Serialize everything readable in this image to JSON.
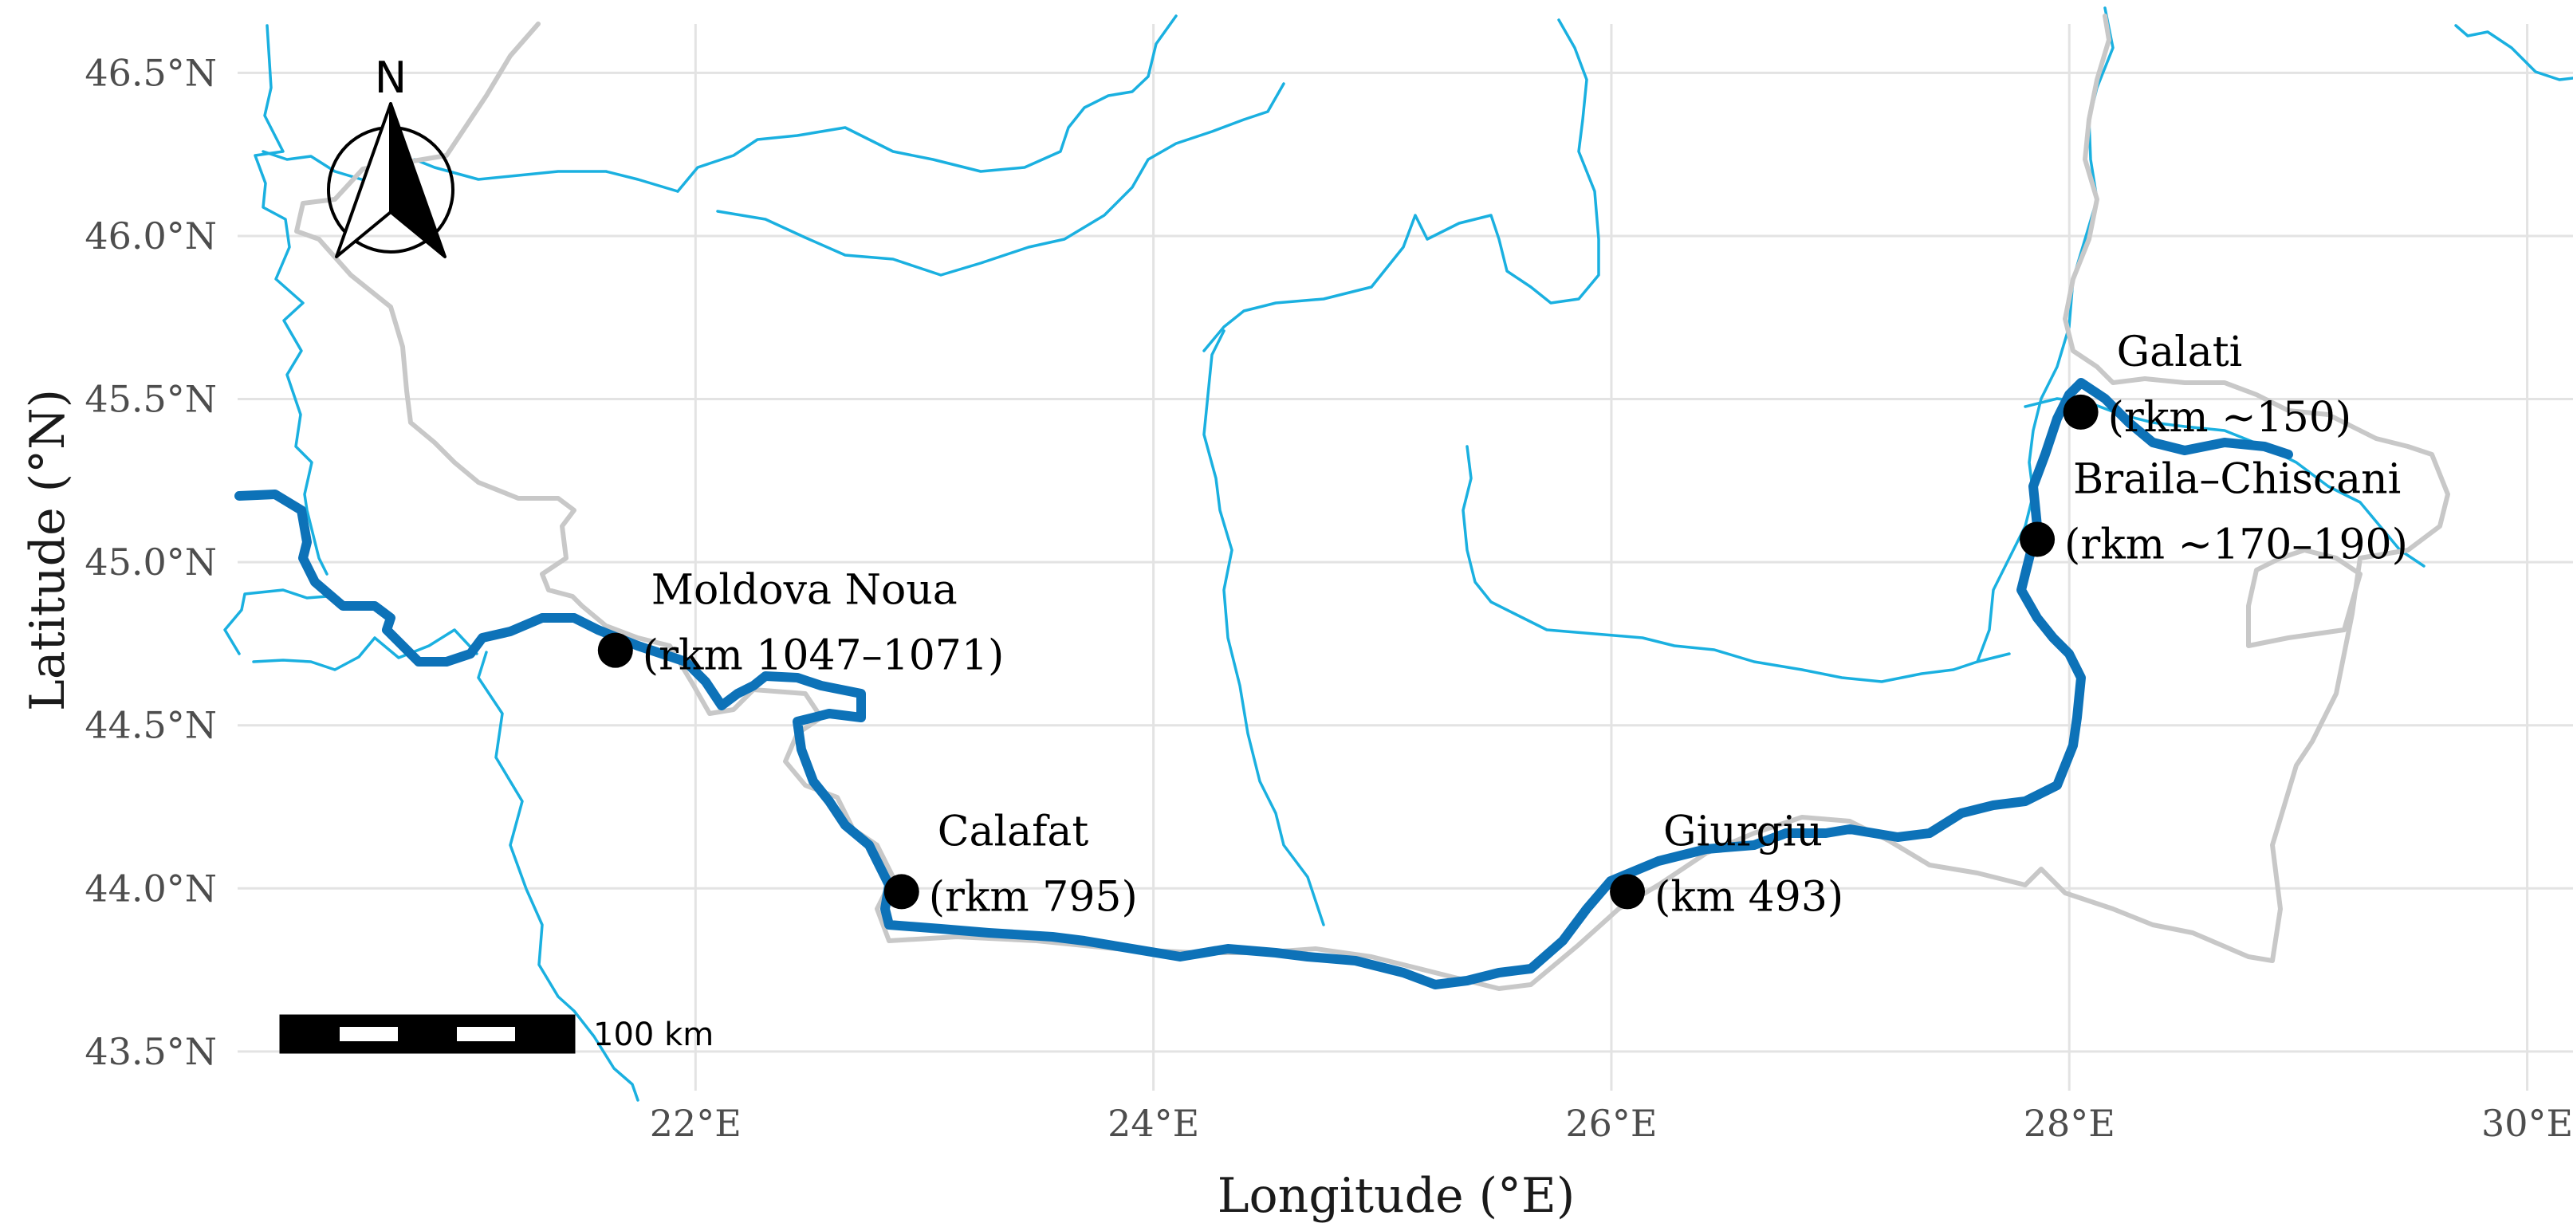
{
  "map": {
    "x_axis": {
      "title": "Longitude (°E)",
      "ticks": [
        {
          "value": 22,
          "label": "22°E"
        },
        {
          "value": 24,
          "label": "24°E"
        },
        {
          "value": 26,
          "label": "26°E"
        },
        {
          "value": 28,
          "label": "28°E"
        },
        {
          "value": 30,
          "label": "30°E"
        }
      ]
    },
    "y_axis": {
      "title": "Latitude (°N)",
      "ticks": [
        {
          "value": 43.5,
          "label": "43.5°N"
        },
        {
          "value": 44.0,
          "label": "44.0°N"
        },
        {
          "value": 44.5,
          "label": "44.5°N"
        },
        {
          "value": 45.0,
          "label": "45.0°N"
        },
        {
          "value": 45.5,
          "label": "45.5°N"
        },
        {
          "value": 46.0,
          "label": "46.0°N"
        },
        {
          "value": 46.5,
          "label": "46.5°N"
        }
      ]
    },
    "extent": {
      "lon": [
        20.0,
        30.2
      ],
      "lat": [
        43.38,
        46.65
      ]
    },
    "grid": true,
    "north_arrow": {
      "letter": "N",
      "position": "top-left"
    },
    "scale_bar": {
      "label": "100 km",
      "position": "bottom-left"
    },
    "colors": {
      "danube": "#0d72b8",
      "tributaries": "#1ab0e0",
      "border": "#c8c8c8",
      "grid": "#e3e3e3",
      "site": "#000000"
    },
    "sites": [
      {
        "name": "Moldova Noua",
        "range": "(rkm 1047–1071)",
        "lon": 21.65,
        "lat": 44.73
      },
      {
        "name": "Calafat",
        "range": "(rkm 795)",
        "lon": 22.9,
        "lat": 43.99
      },
      {
        "name": "Giurgiu",
        "range": "(km 493)",
        "lon": 26.07,
        "lat": 43.99
      },
      {
        "name": "Galati",
        "range": "(rkm ~150)",
        "lon": 28.05,
        "lat": 45.46
      },
      {
        "name": "Braila–Chiscani",
        "range": "(rkm ~170–190)",
        "lon": 27.86,
        "lat": 45.07
      }
    ]
  }
}
